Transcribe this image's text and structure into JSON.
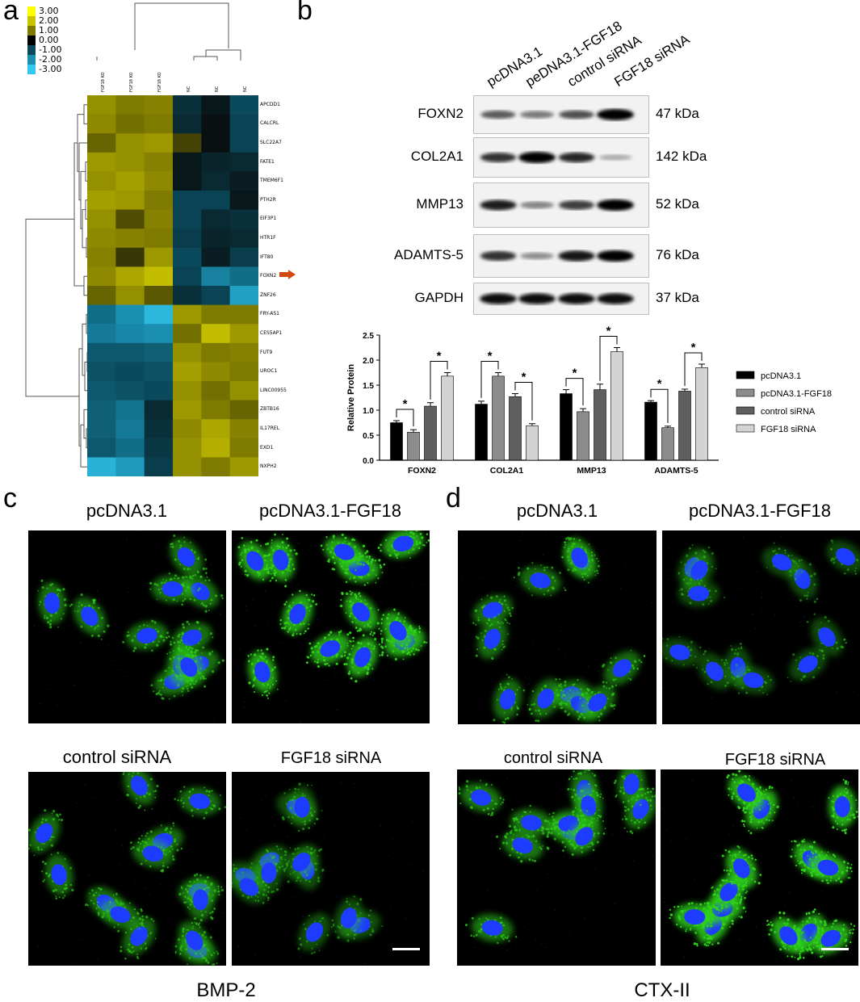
{
  "panels": {
    "a": "a",
    "b": "b",
    "c": "c",
    "d": "d"
  },
  "heatmap": {
    "legend": [
      "3.00",
      "2.00",
      "1.00",
      "0.00",
      "-1.00",
      "-2.00",
      "-3.00"
    ],
    "legend_colors": [
      "#ffff00",
      "#c9c400",
      "#7f7a00",
      "#000000",
      "#0a4a5c",
      "#1a8fb0",
      "#33c8f0"
    ],
    "columns": [
      "FGF18 KO",
      "FGF18 KO",
      "FGF18 KO",
      "NC",
      "NC",
      "NC"
    ],
    "rows": [
      "APCDD1",
      "CALCRL",
      "SLC22A7",
      "FATE1",
      "TMEM6F1",
      "PTH2R",
      "EIF3P1",
      "HTR1F",
      "IFT80",
      "FOXN2",
      "ZNF26",
      "FRY-AS1",
      "CES5AP1",
      "FUT9",
      "UROC1",
      "LINC00955",
      "ZBTB16",
      "IL17REL",
      "EXD1",
      "NXPH2"
    ],
    "values": [
      [
        1.3,
        1.0,
        1.1,
        -0.6,
        -0.2,
        -1.0
      ],
      [
        1.2,
        0.9,
        1.0,
        -0.5,
        -0.1,
        -0.9
      ],
      [
        0.8,
        1.3,
        1.4,
        0.5,
        -0.1,
        -0.9
      ],
      [
        1.4,
        1.3,
        1.1,
        -0.2,
        -0.4,
        -0.5
      ],
      [
        1.3,
        1.5,
        1.2,
        -0.2,
        -0.5,
        -0.3
      ],
      [
        1.5,
        1.4,
        1.0,
        -0.9,
        -0.9,
        -0.2
      ],
      [
        1.3,
        0.6,
        1.1,
        -0.9,
        -0.5,
        -0.6
      ],
      [
        1.2,
        1.1,
        1.0,
        -0.8,
        -0.4,
        -0.5
      ],
      [
        1.1,
        0.4,
        1.4,
        -1.0,
        -0.3,
        -0.8
      ],
      [
        1.2,
        1.6,
        1.9,
        -0.9,
        -1.8,
        -1.5
      ],
      [
        0.8,
        1.3,
        0.7,
        -0.6,
        -0.9,
        -2.3
      ],
      [
        -1.5,
        -2.0,
        -2.7,
        1.4,
        1.0,
        1.0
      ],
      [
        -1.7,
        -1.9,
        -2.0,
        0.9,
        1.9,
        1.4
      ],
      [
        -1.2,
        -1.2,
        -1.3,
        1.3,
        1.0,
        1.1
      ],
      [
        -1.1,
        -1.0,
        -1.1,
        1.5,
        1.2,
        1.0
      ],
      [
        -1.2,
        -1.1,
        -1.0,
        1.3,
        0.9,
        1.3
      ],
      [
        -1.3,
        -1.6,
        -0.5,
        1.4,
        1.0,
        0.8
      ],
      [
        -1.3,
        -1.7,
        -0.6,
        1.2,
        1.6,
        1.1
      ],
      [
        -1.2,
        -1.5,
        -0.7,
        1.3,
        1.7,
        1.0
      ],
      [
        -2.6,
        -2.2,
        -0.8,
        1.3,
        1.0,
        1.4
      ]
    ],
    "arrow_row": "FOXN2",
    "arrow_color": "#d24a10"
  },
  "blot": {
    "lanes": [
      "pcDNA3.1",
      "peDNA3.1-FGF18",
      "control siRNA",
      "FGF18 siRNA"
    ],
    "bands": [
      {
        "name": "FOXN2",
        "kda": "47 kDa",
        "intensity": [
          0.55,
          0.4,
          0.6,
          1.0
        ]
      },
      {
        "name": "COL2A1",
        "kda": "142 kDa",
        "intensity": [
          0.75,
          1.0,
          0.8,
          0.15
        ]
      },
      {
        "name": "MMP13",
        "kda": "52 kDa",
        "intensity": [
          0.85,
          0.35,
          0.7,
          1.0
        ]
      },
      {
        "name": "ADAMTS-5",
        "kda": "76 kDa",
        "intensity": [
          0.75,
          0.3,
          0.9,
          1.0
        ]
      },
      {
        "name": "GAPDH",
        "kda": "37 kDa",
        "intensity": [
          0.95,
          0.95,
          0.95,
          0.95
        ]
      }
    ]
  },
  "chart_data": {
    "type": "bar",
    "ylabel": "Relative Protein",
    "ylim": [
      0,
      2.5
    ],
    "yticks": [
      "0.0",
      "0.5",
      "1.0",
      "1.5",
      "2.0",
      "2.5"
    ],
    "categories": [
      "FOXN2",
      "COL2A1",
      "MMP13",
      "ADAMTS-5"
    ],
    "series": [
      {
        "name": "pcDNA3.1",
        "color": "#000000",
        "values": [
          0.75,
          1.12,
          1.33,
          1.16
        ],
        "errors": [
          0.04,
          0.06,
          0.08,
          0.03
        ]
      },
      {
        "name": "pcDNA3.1-FGF18",
        "color": "#8c8c8c",
        "values": [
          0.56,
          1.68,
          0.97,
          0.65
        ],
        "errors": [
          0.05,
          0.07,
          0.06,
          0.03
        ]
      },
      {
        "name": "control siRNA",
        "color": "#5f5f5f",
        "values": [
          1.08,
          1.27,
          1.41,
          1.38
        ],
        "errors": [
          0.07,
          0.06,
          0.11,
          0.04
        ]
      },
      {
        "name": "FGF18 siRNA",
        "color": "#d3d3d3",
        "values": [
          1.68,
          0.69,
          2.17,
          1.85
        ],
        "errors": [
          0.07,
          0.04,
          0.08,
          0.07
        ]
      }
    ],
    "significance_marker": "*",
    "legend_position": "right"
  },
  "micro_c": {
    "labels": [
      "pcDNA3.1",
      "pcDNA3.1-FGF18",
      "control siRNA",
      "FGF18 siRNA"
    ],
    "green": [
      0.5,
      0.95,
      0.45,
      0.2
    ],
    "footer": "BMP-2"
  },
  "micro_d": {
    "labels": [
      "pcDNA3.1",
      "pcDNA3.1-FGF18",
      "control siRNA",
      "FGF18 siRNA"
    ],
    "green": [
      0.45,
      0.15,
      0.55,
      1.0
    ],
    "footer": "CTX-II"
  },
  "colors": {
    "nucleus": "#1e3cff",
    "cytoplasm": "#2fd21a"
  }
}
